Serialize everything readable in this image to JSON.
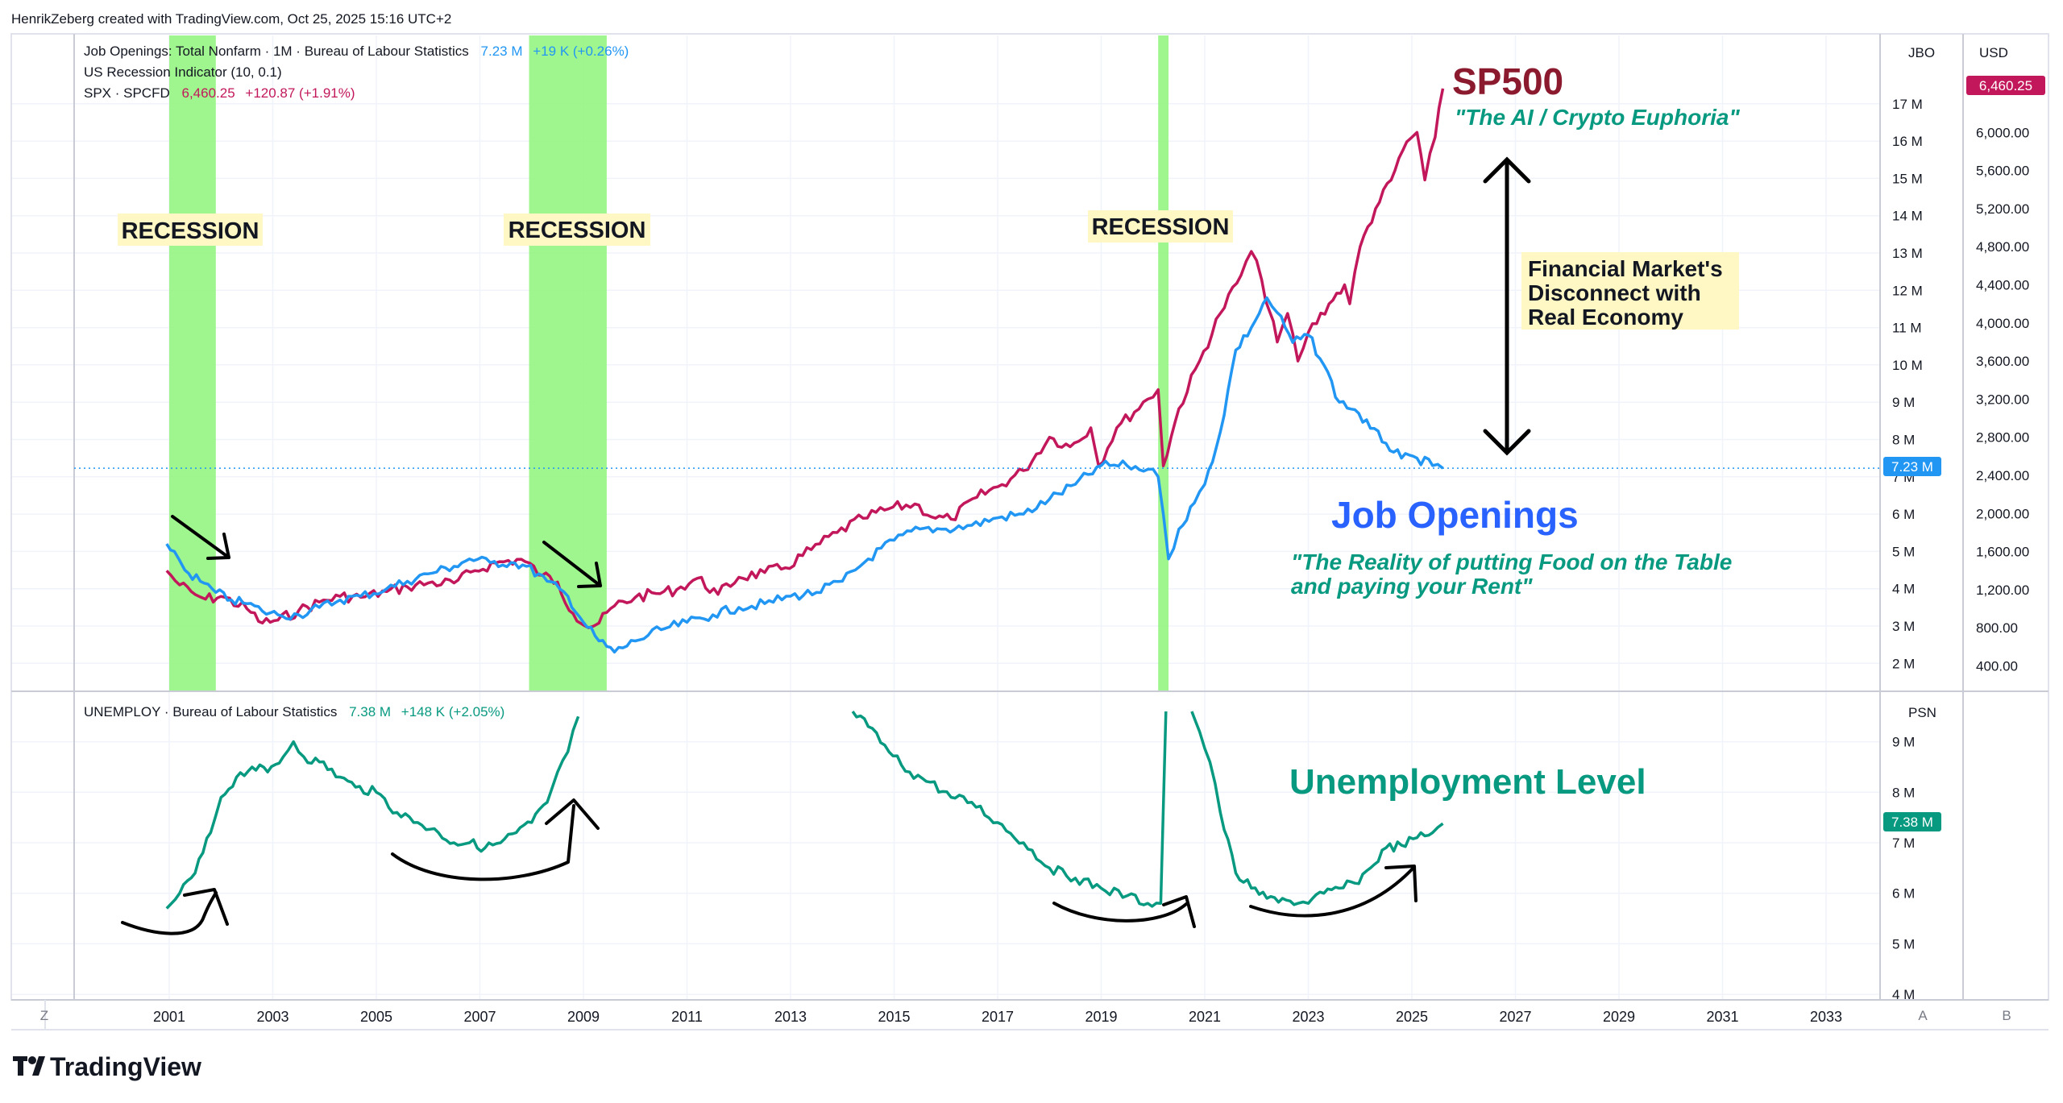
{
  "header": {
    "credit": "HenrikZeberg created with TradingView.com, Oct 25, 2025 15:16 UTC+2"
  },
  "legend": {
    "jbo_name": "Job Openings: Total Nonfarm · 1M · Bureau of Labour Statistics",
    "jbo_value": "7.23 M",
    "jbo_change": "+19 K (+0.26%)",
    "recession_name": "US Recession Indicator (10, 0.1)",
    "spx_name": "SPX · SPCFD",
    "spx_value": "6,460.25",
    "spx_change": "+120.87 (+1.91%)",
    "unemploy_name": "UNEMPLOY · Bureau of Labour Statistics",
    "unemploy_value": "7.38 M",
    "unemploy_change": "+148 K (+2.05%)"
  },
  "scales": {
    "jbo_header": "JBO",
    "usd_header": "USD",
    "psn_header": "PSN",
    "jbo_ticks": [
      "17 M",
      "16 M",
      "15 M",
      "14 M",
      "13 M",
      "12 M",
      "11 M",
      "10 M",
      "9 M",
      "8 M",
      "7 M",
      "6 M",
      "5 M",
      "4 M",
      "3 M",
      "2 M"
    ],
    "usd_ticks": [
      "6,000.00",
      "5,600.00",
      "5,200.00",
      "4,800.00",
      "4,400.00",
      "4,000.00",
      "3,600.00",
      "3,200.00",
      "2,800.00",
      "2,400.00",
      "2,000.00",
      "1,600.00",
      "1,200.00",
      "800.00",
      "400.00"
    ],
    "psn_ticks": [
      "9 M",
      "8 M",
      "7 M",
      "6 M",
      "5 M",
      "4 M"
    ],
    "jbo_last_label": "7.23 M",
    "spx_last_label": "6,460.25",
    "unemploy_last_label": "7.38 M"
  },
  "time_axis": {
    "years": [
      "2001",
      "2003",
      "2005",
      "2007",
      "2009",
      "2011",
      "2013",
      "2015",
      "2017",
      "2019",
      "2021",
      "2023",
      "2025",
      "2027",
      "2029",
      "2031",
      "2033"
    ],
    "left_button": "Z",
    "right_button_a": "A",
    "right_button_b": "B"
  },
  "annotations": {
    "recession_1": "RECESSION",
    "recession_2": "RECESSION",
    "recession_3": "RECESSION",
    "sp500_title": "SP500",
    "sp500_subtitle": "\"The AI / Crypto Euphoria\"",
    "disconnect_line1": "Financial Market's",
    "disconnect_line2": "Disconnect with",
    "disconnect_line3": "Real Economy",
    "jobs_title": "Job Openings",
    "jobs_subtitle_line1": "\"The Reality of putting Food on the Table",
    "jobs_subtitle_line2": "and paying your Rent\"",
    "unemployment_title": "Unemployment Level"
  },
  "footer": {
    "brand": "TradingView"
  },
  "colors": {
    "jbo": "#2196f3",
    "spx": "#c2185b",
    "unemploy": "#089981",
    "recession_band": "#8ff57a",
    "highlight": "#fff8c4",
    "sp500_text": "#8b1a2e",
    "jobs_text": "#2962ff",
    "teal_text": "#089981"
  },
  "chart_data": [
    {
      "type": "line",
      "title": "",
      "xlabel": "",
      "ylabel": "",
      "ylim_left_millions": [
        1.5,
        18
      ],
      "ylim_right_usd": [
        300,
        6650
      ],
      "recession_periods": [
        [
          2001.0,
          2001.9
        ],
        [
          2007.95,
          2009.45
        ],
        [
          2020.1,
          2020.3
        ]
      ],
      "series": [
        {
          "name": "Job Openings: Total Nonfarm",
          "axis": "JBO",
          "unit": "M",
          "points": [
            [
              2000.95,
              5.2
            ],
            [
              2001.1,
              5.0
            ],
            [
              2001.3,
              4.5
            ],
            [
              2001.6,
              4.2
            ],
            [
              2001.9,
              3.9
            ],
            [
              2002.2,
              3.7
            ],
            [
              2002.5,
              3.6
            ],
            [
              2002.8,
              3.4
            ],
            [
              2003.1,
              3.3
            ],
            [
              2003.5,
              3.3
            ],
            [
              2003.9,
              3.5
            ],
            [
              2004.3,
              3.7
            ],
            [
              2004.7,
              3.8
            ],
            [
              2005.2,
              4.0
            ],
            [
              2005.6,
              4.2
            ],
            [
              2006.0,
              4.4
            ],
            [
              2006.5,
              4.6
            ],
            [
              2006.8,
              4.8
            ],
            [
              2007.2,
              4.7
            ],
            [
              2007.6,
              4.7
            ],
            [
              2007.9,
              4.6
            ],
            [
              2008.3,
              4.2
            ],
            [
              2008.7,
              3.8
            ],
            [
              2009.0,
              3.1
            ],
            [
              2009.3,
              2.6
            ],
            [
              2009.6,
              2.3
            ],
            [
              2010.0,
              2.6
            ],
            [
              2010.5,
              2.9
            ],
            [
              2011.0,
              3.1
            ],
            [
              2011.5,
              3.3
            ],
            [
              2012.0,
              3.5
            ],
            [
              2012.5,
              3.6
            ],
            [
              2013.0,
              3.8
            ],
            [
              2013.5,
              3.9
            ],
            [
              2014.0,
              4.2
            ],
            [
              2014.5,
              4.8
            ],
            [
              2015.0,
              5.3
            ],
            [
              2015.5,
              5.6
            ],
            [
              2016.0,
              5.6
            ],
            [
              2016.5,
              5.7
            ],
            [
              2017.0,
              5.9
            ],
            [
              2017.5,
              6.0
            ],
            [
              2018.0,
              6.4
            ],
            [
              2018.5,
              6.8
            ],
            [
              2019.0,
              7.3
            ],
            [
              2019.5,
              7.3
            ],
            [
              2019.9,
              7.2
            ],
            [
              2020.1,
              7.0
            ],
            [
              2020.2,
              6.0
            ],
            [
              2020.3,
              4.8
            ],
            [
              2020.5,
              5.6
            ],
            [
              2020.8,
              6.3
            ],
            [
              2021.0,
              6.8
            ],
            [
              2021.3,
              8.2
            ],
            [
              2021.6,
              10.4
            ],
            [
              2021.9,
              11.0
            ],
            [
              2022.2,
              11.8
            ],
            [
              2022.4,
              11.4
            ],
            [
              2022.7,
              10.6
            ],
            [
              2023.0,
              10.8
            ],
            [
              2023.3,
              10.0
            ],
            [
              2023.6,
              9.0
            ],
            [
              2023.9,
              8.8
            ],
            [
              2024.2,
              8.3
            ],
            [
              2024.5,
              7.9
            ],
            [
              2024.8,
              7.5
            ],
            [
              2025.1,
              7.5
            ],
            [
              2025.4,
              7.3
            ],
            [
              2025.6,
              7.23
            ]
          ]
        },
        {
          "name": "SPX · SPCFD",
          "axis": "USD",
          "unit": "USD",
          "points": [
            [
              2000.95,
              1400
            ],
            [
              2001.2,
              1250
            ],
            [
              2001.5,
              1150
            ],
            [
              2001.7,
              1100
            ],
            [
              2002.0,
              1130
            ],
            [
              2002.5,
              1000
            ],
            [
              2002.8,
              850
            ],
            [
              2003.1,
              880
            ],
            [
              2003.5,
              980
            ],
            [
              2003.9,
              1070
            ],
            [
              2004.3,
              1130
            ],
            [
              2004.7,
              1120
            ],
            [
              2005.2,
              1180
            ],
            [
              2005.6,
              1230
            ],
            [
              2006.0,
              1270
            ],
            [
              2006.5,
              1270
            ],
            [
              2006.9,
              1400
            ],
            [
              2007.3,
              1480
            ],
            [
              2007.8,
              1520
            ],
            [
              2008.2,
              1350
            ],
            [
              2008.5,
              1280
            ],
            [
              2008.8,
              950
            ],
            [
              2009.1,
              800
            ],
            [
              2009.3,
              850
            ],
            [
              2009.6,
              1030
            ],
            [
              2010.0,
              1120
            ],
            [
              2010.4,
              1160
            ],
            [
              2010.8,
              1200
            ],
            [
              2011.2,
              1320
            ],
            [
              2011.6,
              1150
            ],
            [
              2012.0,
              1330
            ],
            [
              2012.5,
              1380
            ],
            [
              2012.9,
              1430
            ],
            [
              2013.4,
              1620
            ],
            [
              2013.9,
              1800
            ],
            [
              2014.4,
              1950
            ],
            [
              2014.9,
              2050
            ],
            [
              2015.4,
              2100
            ],
            [
              2015.8,
              1950
            ],
            [
              2016.1,
              1940
            ],
            [
              2016.6,
              2170
            ],
            [
              2017.0,
              2280
            ],
            [
              2017.5,
              2450
            ],
            [
              2018.0,
              2800
            ],
            [
              2018.4,
              2700
            ],
            [
              2018.8,
              2900
            ],
            [
              2018.95,
              2500
            ],
            [
              2019.3,
              2900
            ],
            [
              2019.9,
              3200
            ],
            [
              2020.1,
              3300
            ],
            [
              2020.2,
              2500
            ],
            [
              2020.5,
              3100
            ],
            [
              2020.9,
              3600
            ],
            [
              2021.3,
              4100
            ],
            [
              2021.7,
              4500
            ],
            [
              2021.9,
              4750
            ],
            [
              2022.1,
              4450
            ],
            [
              2022.4,
              3800
            ],
            [
              2022.6,
              4100
            ],
            [
              2022.8,
              3600
            ],
            [
              2023.0,
              3900
            ],
            [
              2023.4,
              4200
            ],
            [
              2023.7,
              4400
            ],
            [
              2023.8,
              4200
            ],
            [
              2024.0,
              4800
            ],
            [
              2024.3,
              5200
            ],
            [
              2024.6,
              5500
            ],
            [
              2024.9,
              5900
            ],
            [
              2025.1,
              6000
            ],
            [
              2025.25,
              5500
            ],
            [
              2025.45,
              5950
            ],
            [
              2025.6,
              6460.25
            ]
          ]
        }
      ]
    },
    {
      "type": "line",
      "title": "",
      "xlabel": "",
      "ylabel": "",
      "ylim_millions": [
        4,
        9.5
      ],
      "series": [
        {
          "name": "UNEMPLOY · Bureau of Labour Statistics",
          "axis": "PSN",
          "unit": "M",
          "segments": [
            [
              [
                2000.95,
                5.7
              ],
              [
                2001.2,
                6.0
              ],
              [
                2001.5,
                6.4
              ],
              [
                2001.8,
                7.2
              ],
              [
                2002.0,
                7.9
              ],
              [
                2002.3,
                8.3
              ],
              [
                2002.6,
                8.5
              ],
              [
                2002.9,
                8.4
              ],
              [
                2003.2,
                8.7
              ],
              [
                2003.4,
                9.0
              ],
              [
                2003.6,
                8.7
              ],
              [
                2003.9,
                8.6
              ],
              [
                2004.3,
                8.3
              ],
              [
                2004.6,
                8.1
              ],
              [
                2005.0,
                8.0
              ],
              [
                2005.4,
                7.6
              ],
              [
                2005.8,
                7.4
              ],
              [
                2006.2,
                7.2
              ],
              [
                2006.5,
                7.0
              ],
              [
                2006.8,
                7.0
              ],
              [
                2007.1,
                6.9
              ],
              [
                2007.4,
                7.0
              ],
              [
                2007.7,
                7.2
              ],
              [
                2008.0,
                7.4
              ],
              [
                2008.3,
                7.8
              ],
              [
                2008.5,
                8.4
              ],
              [
                2008.7,
                8.8
              ],
              [
                2008.9,
                9.5
              ]
            ],
            [
              [
                2014.2,
                9.6
              ],
              [
                2014.5,
                9.3
              ],
              [
                2014.9,
                8.8
              ],
              [
                2015.3,
                8.4
              ],
              [
                2015.7,
                8.2
              ],
              [
                2016.1,
                7.9
              ],
              [
                2016.5,
                7.8
              ],
              [
                2017.0,
                7.4
              ],
              [
                2017.5,
                7.0
              ],
              [
                2018.0,
                6.5
              ],
              [
                2018.5,
                6.3
              ],
              [
                2019.0,
                6.1
              ],
              [
                2019.5,
                5.95
              ],
              [
                2019.9,
                5.8
              ],
              [
                2020.15,
                5.8
              ],
              [
                2020.25,
                9.6
              ]
            ],
            [
              [
                2020.75,
                9.6
              ],
              [
                2020.9,
                9.2
              ],
              [
                2021.1,
                8.6
              ],
              [
                2021.3,
                7.6
              ],
              [
                2021.6,
                6.4
              ],
              [
                2021.9,
                6.1
              ],
              [
                2022.2,
                5.9
              ],
              [
                2022.5,
                5.9
              ],
              [
                2022.8,
                5.8
              ],
              [
                2023.0,
                5.8
              ],
              [
                2023.3,
                6.0
              ],
              [
                2023.6,
                6.1
              ],
              [
                2023.9,
                6.2
              ],
              [
                2024.2,
                6.5
              ],
              [
                2024.5,
                6.9
              ],
              [
                2024.8,
                6.95
              ],
              [
                2025.1,
                7.1
              ],
              [
                2025.4,
                7.2
              ],
              [
                2025.6,
                7.38
              ]
            ]
          ]
        }
      ]
    }
  ]
}
